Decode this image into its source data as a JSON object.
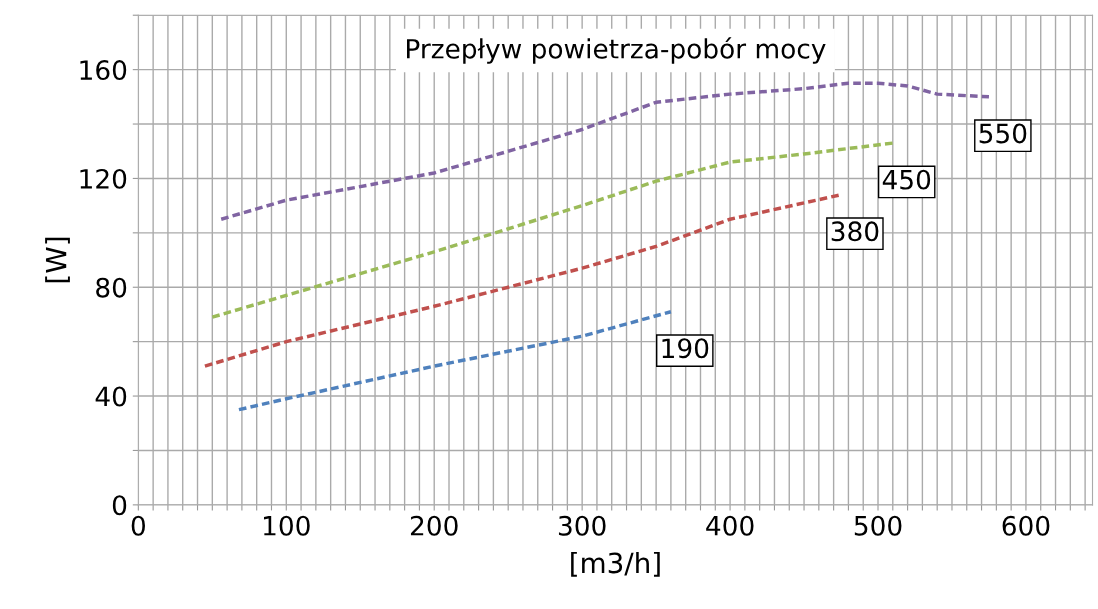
{
  "chart_data": {
    "type": "line",
    "title": "Przepływ powietrza-pobór mocy",
    "xlabel": "[m3/h]",
    "ylabel": "[W]",
    "xlim": [
      0,
      645
    ],
    "ylim": [
      0,
      180
    ],
    "xticks": [
      0,
      {
        "value": 10,
        "label": null
      },
      {
        "value": 20,
        "label": null
      },
      {
        "value": 30,
        "label": null
      },
      {
        "value": 40,
        "label": null
      },
      {
        "value": 50,
        "label": null
      },
      {
        "value": 60,
        "label": null
      },
      {
        "value": 70,
        "label": null
      },
      {
        "value": 80,
        "label": null
      },
      {
        "value": 90,
        "label": null
      },
      100,
      {
        "value": 110,
        "label": null
      },
      {
        "value": 120,
        "label": null
      },
      {
        "value": 130,
        "label": null
      },
      {
        "value": 140,
        "label": null
      },
      {
        "value": 150,
        "label": null
      },
      {
        "value": 160,
        "label": null
      },
      {
        "value": 170,
        "label": null
      },
      {
        "value": 180,
        "label": null
      },
      {
        "value": 190,
        "label": null
      },
      200,
      {
        "value": 210,
        "label": null
      },
      {
        "value": 220,
        "label": null
      },
      {
        "value": 230,
        "label": null
      },
      {
        "value": 240,
        "label": null
      },
      {
        "value": 250,
        "label": null
      },
      {
        "value": 260,
        "label": null
      },
      {
        "value": 270,
        "label": null
      },
      {
        "value": 280,
        "label": null
      },
      {
        "value": 290,
        "label": null
      },
      300,
      {
        "value": 310,
        "label": null
      },
      {
        "value": 320,
        "label": null
      },
      {
        "value": 330,
        "label": null
      },
      {
        "value": 340,
        "label": null
      },
      {
        "value": 350,
        "label": null
      },
      {
        "value": 360,
        "label": null
      },
      {
        "value": 370,
        "label": null
      },
      {
        "value": 380,
        "label": null
      },
      {
        "value": 390,
        "label": null
      },
      400,
      {
        "value": 410,
        "label": null
      },
      {
        "value": 420,
        "label": null
      },
      {
        "value": 430,
        "label": null
      },
      {
        "value": 440,
        "label": null
      },
      {
        "value": 450,
        "label": null
      },
      {
        "value": 460,
        "label": null
      },
      {
        "value": 470,
        "label": null
      },
      {
        "value": 480,
        "label": null
      },
      {
        "value": 490,
        "label": null
      },
      500,
      {
        "value": 510,
        "label": null
      },
      {
        "value": 520,
        "label": null
      },
      {
        "value": 530,
        "label": null
      },
      {
        "value": 540,
        "label": null
      },
      {
        "value": 550,
        "label": null
      },
      {
        "value": 560,
        "label": null
      },
      {
        "value": 570,
        "label": null
      },
      {
        "value": 580,
        "label": null
      },
      {
        "value": 590,
        "label": null
      },
      600,
      {
        "value": 610,
        "label": null
      },
      {
        "value": 620,
        "label": null
      },
      {
        "value": 630,
        "label": null
      },
      {
        "value": 640,
        "label": null
      }
    ],
    "yticks": [
      0,
      {
        "value": 20,
        "label": null
      },
      40,
      {
        "value": 60,
        "label": null
      },
      80,
      {
        "value": 100,
        "label": null
      },
      120,
      {
        "value": 140,
        "label": null
      },
      160,
      {
        "value": 180,
        "label": null
      }
    ],
    "grid": true,
    "line_style": "dashed",
    "marker": "none",
    "series": [
      {
        "name": "550",
        "color": "#8064a2",
        "x": [
          56,
          100,
          200,
          300,
          350,
          400,
          450,
          480,
          500,
          520,
          540,
          575
        ],
        "values": [
          105,
          112,
          122,
          138,
          148,
          151,
          153,
          155,
          155,
          154,
          151,
          150
        ]
      },
      {
        "name": "450",
        "color": "#9bbb59",
        "x": [
          50,
          100,
          200,
          300,
          350,
          400,
          450,
          510
        ],
        "values": [
          69,
          77,
          93,
          110,
          119,
          126,
          129,
          133
        ]
      },
      {
        "name": "380",
        "color": "#c0504d",
        "x": [
          45,
          100,
          200,
          300,
          350,
          400,
          475
        ],
        "values": [
          51,
          60,
          73,
          87,
          95,
          105,
          114
        ]
      },
      {
        "name": "190",
        "color": "#4f81bd",
        "x": [
          68,
          100,
          200,
          300,
          360
        ],
        "values": [
          35,
          39,
          51,
          62,
          71
        ]
      }
    ]
  }
}
